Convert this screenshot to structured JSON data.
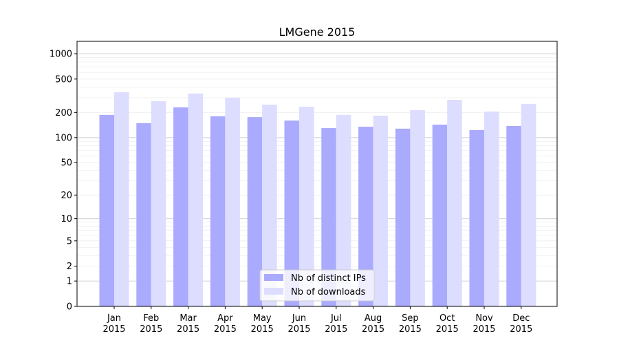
{
  "chart_data": {
    "type": "bar",
    "title": "LMGene 2015",
    "xlabel": "",
    "ylabel": "",
    "y_scale": "log10(y+1)",
    "ylim": [
      0,
      1400
    ],
    "y_ticks": [
      0,
      1,
      2,
      5,
      10,
      20,
      50,
      100,
      200,
      500,
      1000
    ],
    "grid": true,
    "legend_position": "lower center",
    "categories": [
      "Jan\n2015",
      "Feb\n2015",
      "Mar\n2015",
      "Apr\n2015",
      "May\n2015",
      "Jun\n2015",
      "Jul\n2015",
      "Aug\n2015",
      "Sep\n2015",
      "Oct\n2015",
      "Nov\n2015",
      "Dec\n2015"
    ],
    "series": [
      {
        "name": "Nb of distinct IPs",
        "color": "#aaaaff",
        "values": [
          187,
          149,
          230,
          180,
          176,
          160,
          130,
          135,
          128,
          143,
          123,
          138
        ]
      },
      {
        "name": "Nb of downloads",
        "color": "#ddddff",
        "values": [
          349,
          272,
          336,
          299,
          248,
          234,
          187,
          183,
          213,
          283,
          205,
          253
        ]
      }
    ]
  }
}
